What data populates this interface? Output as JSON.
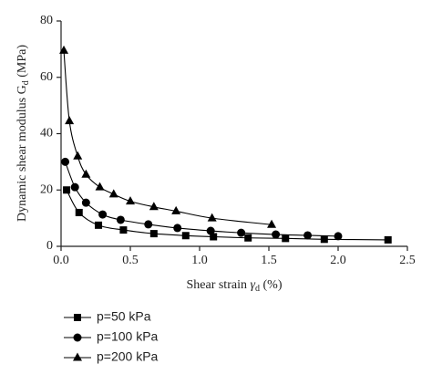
{
  "chart_data": {
    "type": "line",
    "y_label": [
      "Dynamic shear modulus G",
      "d",
      " (MPa)"
    ],
    "x_label": [
      "Shear strain ",
      "γ",
      "d",
      " (%)"
    ],
    "xlim": [
      0,
      2.5
    ],
    "xticks": [
      {
        "value": 0,
        "label": "0.0"
      },
      0.5,
      {
        "value": 1,
        "label": "1.0"
      },
      1.5,
      {
        "value": 2,
        "label": "2.0"
      },
      2.5
    ],
    "ylim": [
      0,
      80
    ],
    "yticks": [
      0,
      20,
      40,
      60,
      80
    ],
    "series": [
      {
        "name": "p=50 kPa",
        "color": "#000000",
        "marker": "square",
        "x": [
          0.04,
          0.13,
          0.27,
          0.45,
          0.67,
          0.9,
          1.1,
          1.35,
          1.62,
          1.9,
          2.36
        ],
        "values": [
          20,
          12,
          7.5,
          5.8,
          4.5,
          3.8,
          3.4,
          3.0,
          2.8,
          2.5,
          2.3
        ]
      },
      {
        "name": "p=100 kPa",
        "color": "#000000",
        "marker": "circle",
        "x": [
          0.03,
          0.1,
          0.18,
          0.3,
          0.43,
          0.63,
          0.84,
          1.08,
          1.3,
          1.55,
          1.78,
          2.0
        ],
        "values": [
          30,
          21,
          15.5,
          11.3,
          9.4,
          7.8,
          6.5,
          5.5,
          4.8,
          4.2,
          3.9,
          3.6
        ]
      },
      {
        "name": "p=200 kPa",
        "color": "#000000",
        "marker": "triangle",
        "x": [
          0.02,
          0.06,
          0.12,
          0.18,
          0.28,
          0.38,
          0.5,
          0.67,
          0.83,
          1.09,
          1.52
        ],
        "values": [
          69.5,
          44.5,
          32,
          25.5,
          21,
          18.5,
          16,
          14,
          12.5,
          10,
          7.7
        ]
      }
    ]
  }
}
